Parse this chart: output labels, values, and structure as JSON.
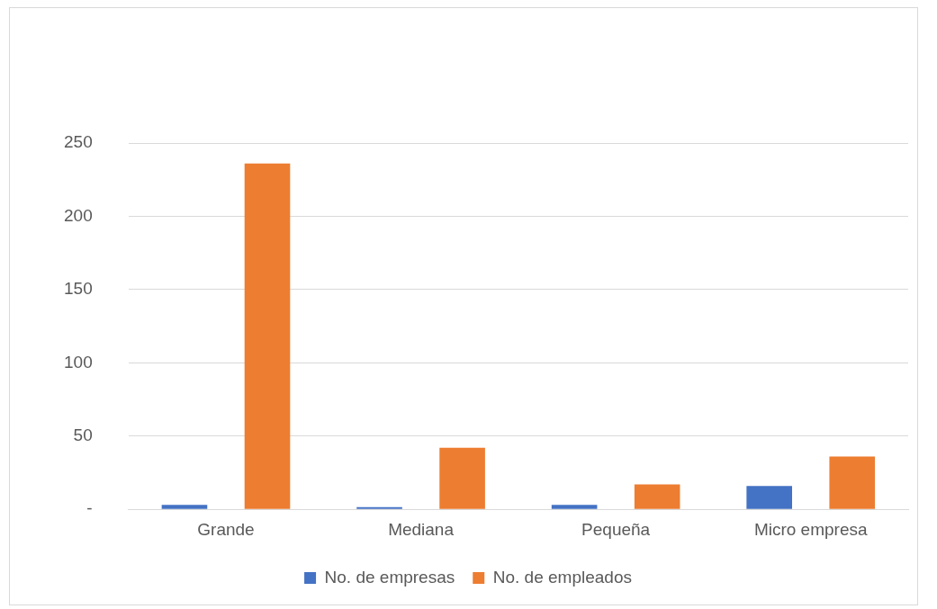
{
  "chart_data": {
    "type": "bar",
    "categories": [
      "Grande",
      "Mediana",
      "Pequeña",
      "Micro empresa"
    ],
    "series": [
      {
        "name": "No. de empresas",
        "color": "#4472c4",
        "values": [
          3,
          1.5,
          3,
          16
        ]
      },
      {
        "name": "No. de empleados",
        "color": "#ed7d31",
        "values": [
          236,
          42,
          17,
          36
        ]
      }
    ],
    "ylim": [
      0,
      250
    ],
    "yticks": [
      {
        "value": 0,
        "label": "-"
      },
      50,
      100,
      150,
      200,
      250
    ],
    "grid": "y",
    "legend": "bottom"
  }
}
